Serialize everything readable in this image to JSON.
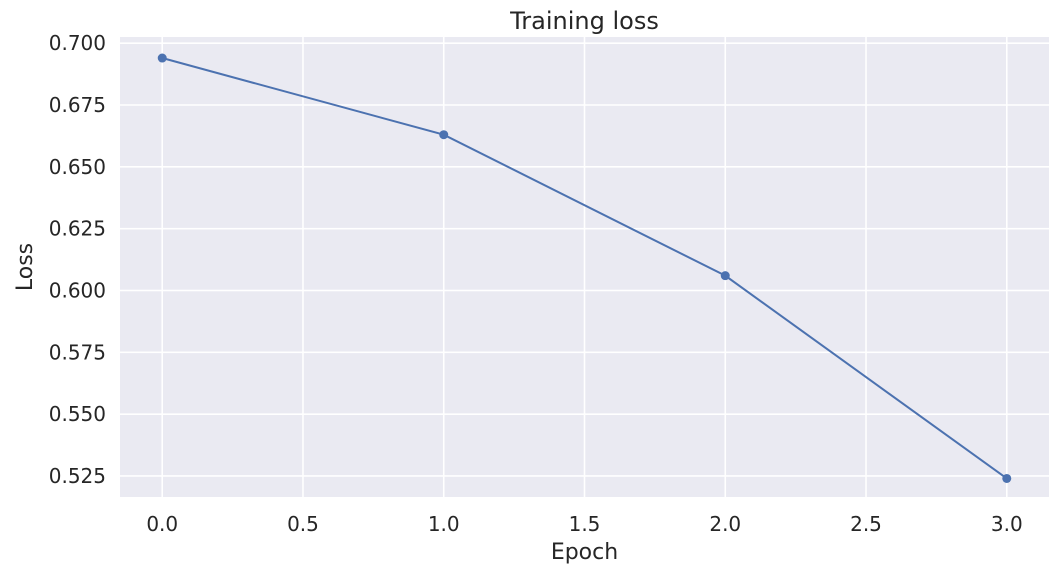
{
  "chart_data": {
    "type": "line",
    "title": "Training loss",
    "xlabel": "Epoch",
    "ylabel": "Loss",
    "xlim": [
      -0.15,
      3.15
    ],
    "ylim": [
      0.5165,
      0.7025
    ],
    "xticks": [
      0.0,
      0.5,
      1.0,
      1.5,
      2.0,
      2.5,
      3.0
    ],
    "xtick_labels": [
      "0.0",
      "0.5",
      "1.0",
      "1.5",
      "2.0",
      "2.5",
      "3.0"
    ],
    "yticks": [
      0.525,
      0.55,
      0.575,
      0.6,
      0.625,
      0.65,
      0.675,
      0.7
    ],
    "ytick_labels": [
      "0.525",
      "0.550",
      "0.575",
      "0.600",
      "0.625",
      "0.650",
      "0.675",
      "0.700"
    ],
    "grid": true,
    "background_color": "#eaeaf2",
    "series": [
      {
        "color": "#4c72b0",
        "marker": "circle",
        "x": [
          0,
          1,
          2,
          3
        ],
        "y": [
          0.694,
          0.663,
          0.606,
          0.524
        ]
      }
    ]
  }
}
